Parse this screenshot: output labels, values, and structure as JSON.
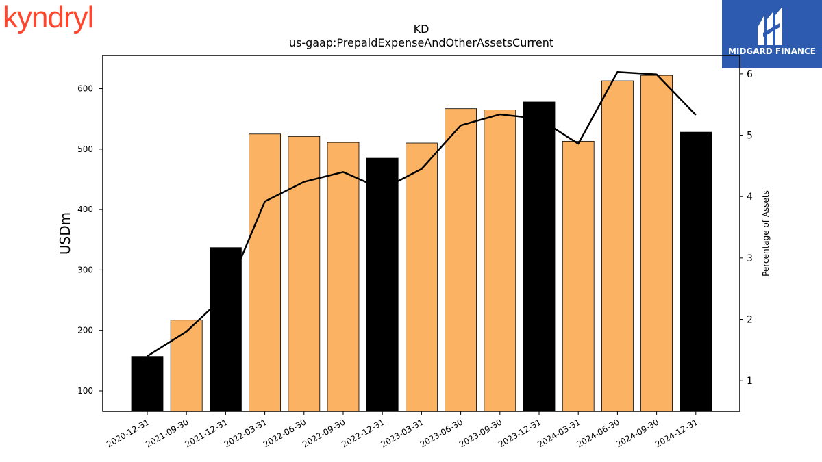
{
  "logos": {
    "left_text": "kyndryl",
    "right_text": "MIDGARD FINANCE"
  },
  "colors": {
    "annual_bar": "#000000",
    "quarter_bar": "#fbb262",
    "line": "#000000",
    "brand_kyndryl": "#ff462d",
    "brand_midgard": "#2d5bb0"
  },
  "chart_data": {
    "type": "bar",
    "title": "KD",
    "subtitle": "us-gaap:PrepaidExpenseAndOtherAssetsCurrent",
    "ylabel": "USDm",
    "ylabel_right": "Percentage of Assets",
    "ylim": [
      66,
      655
    ],
    "ylim_right": [
      0.5,
      6.3
    ],
    "yticks": [
      100,
      200,
      300,
      400,
      500,
      600
    ],
    "yticks_right": [
      1,
      2,
      3,
      4,
      5,
      6
    ],
    "categories": [
      "2020-12-31",
      "2021-09-30",
      "2021-12-31",
      "2022-03-31",
      "2022-06-30",
      "2022-09-30",
      "2022-12-31",
      "2023-03-31",
      "2023-06-30",
      "2023-09-30",
      "2023-12-31",
      "2024-03-31",
      "2024-06-30",
      "2024-09-30",
      "2024-12-31"
    ],
    "series": [
      {
        "kind": "bar",
        "axis": "left",
        "values": [
          157,
          217,
          337,
          525,
          521,
          511,
          485,
          510,
          567,
          565,
          578,
          513,
          613,
          622,
          528
        ],
        "annual": [
          true,
          false,
          true,
          false,
          false,
          false,
          true,
          false,
          false,
          false,
          true,
          false,
          false,
          false,
          true
        ]
      },
      {
        "kind": "line",
        "axis": "right",
        "values": [
          1.4,
          1.8,
          2.4,
          3.92,
          4.24,
          4.4,
          4.12,
          4.45,
          5.16,
          5.34,
          5.27,
          4.86,
          6.03,
          5.99,
          5.33
        ]
      }
    ],
    "grid": false
  }
}
